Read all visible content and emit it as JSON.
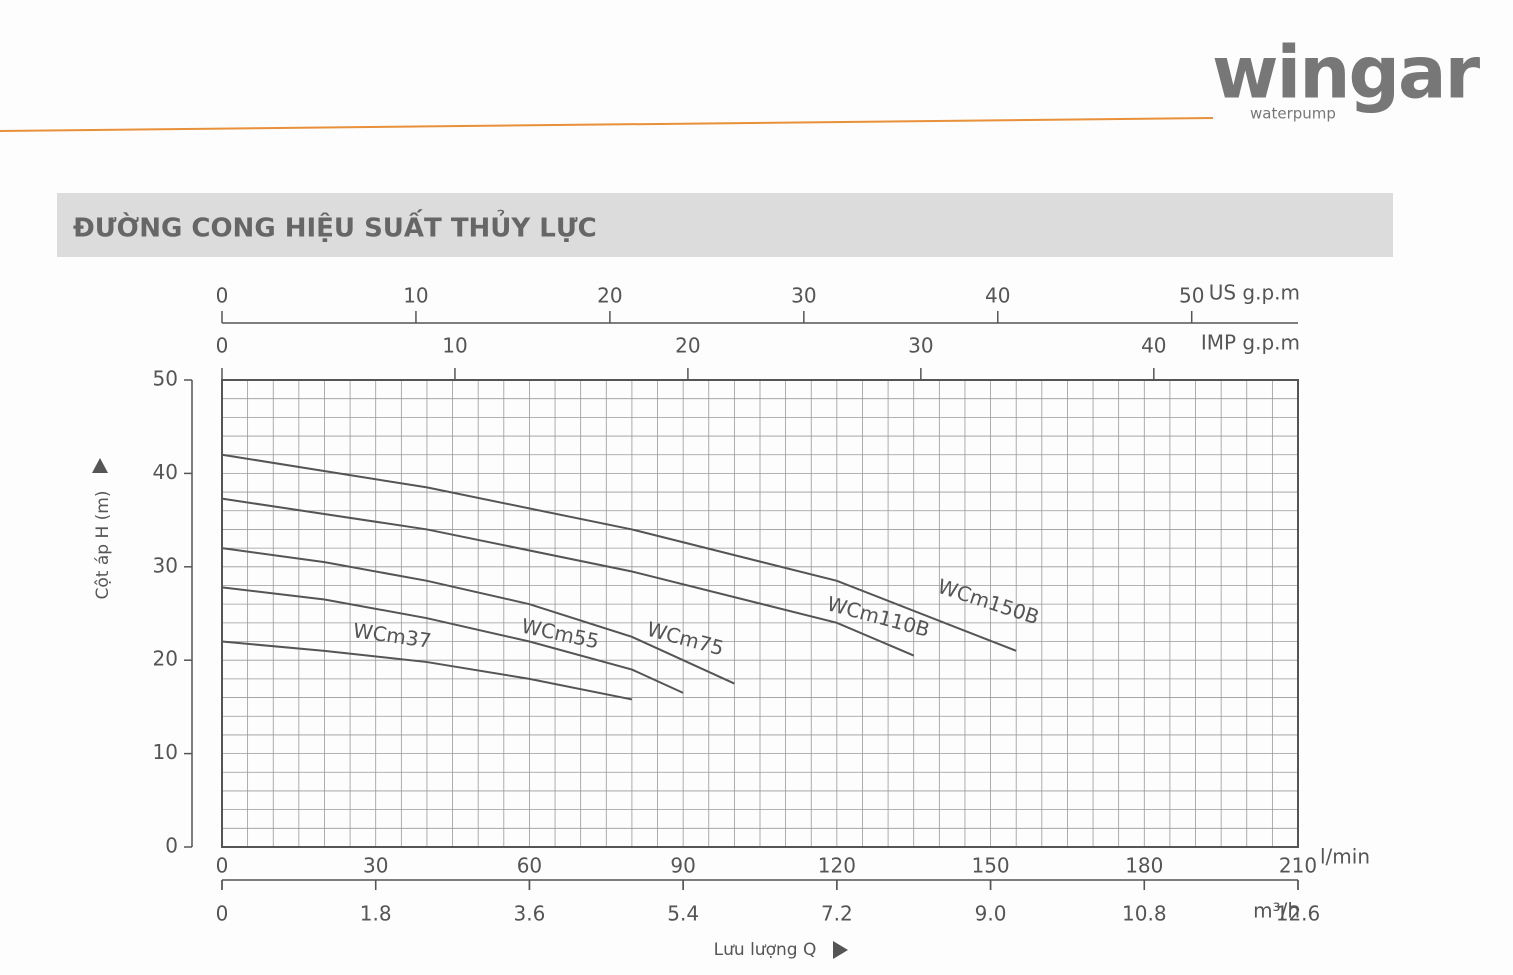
{
  "brand": {
    "name": "wingar",
    "tagline": "waterpump"
  },
  "chart_data": {
    "type": "line",
    "title": "ĐƯỜNG CONG HIỆU SUẤT THỦY LỰC",
    "x_label": "Lưu lượng Q",
    "y_label": "Cột áp H (m)",
    "x_unit": "l/min",
    "xlim": [
      0,
      210
    ],
    "xticks": [
      0,
      30,
      60,
      90,
      120,
      150,
      180,
      210
    ],
    "ylim": [
      0,
      50
    ],
    "yticks": [
      0,
      10,
      20,
      30,
      40,
      50
    ],
    "grid": {
      "x": 5,
      "y": 2
    },
    "line_color": "#555555",
    "series": [
      {
        "name": "WCm37",
        "x": [
          0,
          20,
          40,
          60,
          80
        ],
        "values": [
          22,
          21,
          19.8,
          18,
          15.8
        ]
      },
      {
        "name": "WCm55",
        "x": [
          0,
          20,
          40,
          60,
          80,
          90
        ],
        "values": [
          27.8,
          26.5,
          24.5,
          22,
          19,
          16.5
        ]
      },
      {
        "name": "WCm75",
        "x": [
          0,
          20,
          40,
          60,
          80,
          100
        ],
        "values": [
          32,
          30.5,
          28.5,
          26,
          22.5,
          17.5
        ]
      },
      {
        "name": "WCm110B",
        "x": [
          0,
          40,
          80,
          120,
          135
        ],
        "values": [
          37.3,
          34,
          29.5,
          24,
          20.5
        ]
      },
      {
        "name": "WCm150B",
        "x": [
          0,
          40,
          80,
          120,
          155
        ],
        "values": [
          42,
          38.5,
          34,
          28.5,
          21
        ]
      }
    ],
    "secondary_x_axes": [
      {
        "unit": "US g.p.m",
        "position": "top",
        "xlim": [
          0,
          55.48
        ],
        "xticks": [
          0,
          10,
          20,
          30,
          40,
          50
        ]
      },
      {
        "unit": "IMP g.p.m",
        "position": "top-inner",
        "xlim": [
          0,
          46.19
        ],
        "xticks": [
          0,
          10,
          20,
          30,
          40
        ]
      },
      {
        "unit": "m³/h",
        "position": "bottom",
        "xlim": [
          0,
          12.6
        ],
        "xticks": [
          0,
          1.8,
          3.6,
          5.4,
          7.2,
          {
            "value": 9,
            "label": "9.0"
          },
          10.8,
          12.6
        ]
      }
    ]
  }
}
